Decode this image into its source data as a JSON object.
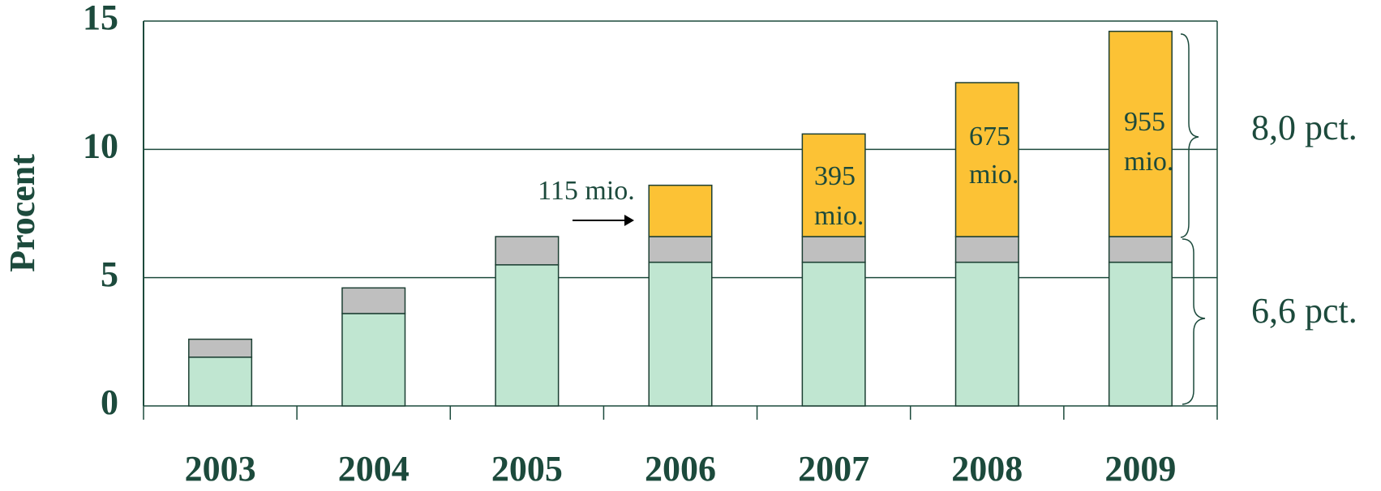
{
  "chart_data": {
    "type": "stacked_bar",
    "y_label": "Procent",
    "categories": [
      "2003",
      "2004",
      "2005",
      "2006",
      "2007",
      "2008",
      "2009"
    ],
    "series": [
      {
        "color": "#c0e6d1",
        "values": [
          1.9,
          3.6,
          5.5,
          5.6,
          5.6,
          5.6,
          5.6
        ]
      },
      {
        "color": "#bfbfbf",
        "values": [
          0.7,
          1.0,
          1.1,
          1.0,
          1.0,
          1.0,
          1.0
        ]
      },
      {
        "color": "#fcc235",
        "values": [
          0,
          0,
          0,
          2.0,
          4.0,
          6.0,
          8.0
        ]
      }
    ],
    "ylim": [
      0,
      15
    ],
    "yticks": [
      0,
      5,
      10,
      15
    ],
    "grid": true,
    "annotations": [
      {
        "lines": [
          "115 mio."
        ]
      },
      {
        "lines": [
          "395",
          "mio."
        ]
      },
      {
        "lines": [
          "675",
          "mio."
        ]
      },
      {
        "lines": [
          "955",
          "mio."
        ]
      }
    ],
    "brackets": [
      {
        "label": "8,0 pct."
      },
      {
        "label": "6,6 pct."
      }
    ]
  }
}
